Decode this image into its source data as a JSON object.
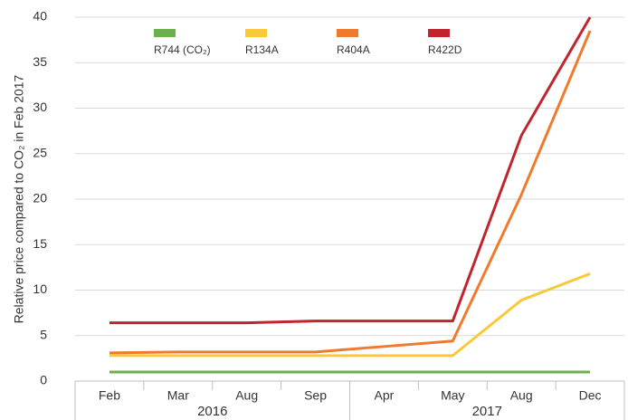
{
  "chart_data": {
    "type": "line",
    "ylabel": "Relative price compared to CO₂ in Feb 2017",
    "categories": [
      "Feb",
      "Mar",
      "Aug",
      "Sep",
      "Apr",
      "May",
      "Aug",
      "Dec"
    ],
    "category_groups": [
      "2016",
      "2016",
      "2016",
      "2016",
      "2017",
      "2017",
      "2017",
      "2017"
    ],
    "series": [
      {
        "name": "R744 (CO₂)",
        "color": "#6ab04c",
        "values": [
          1,
          1,
          1,
          1,
          1,
          1,
          1,
          1
        ]
      },
      {
        "name": "R134A",
        "color": "#f9c93a",
        "values": [
          2.8,
          2.8,
          2.8,
          2.8,
          2.8,
          2.8,
          8.9,
          11.8
        ]
      },
      {
        "name": "R404A",
        "color": "#ef7a2c",
        "values": [
          3.1,
          3.2,
          3.2,
          3.2,
          3.8,
          4.4,
          20.5,
          38.5
        ]
      },
      {
        "name": "R422D",
        "color": "#c0242d",
        "values": [
          6.4,
          6.4,
          6.4,
          6.6,
          6.6,
          6.6,
          27,
          40
        ]
      }
    ],
    "ylim": [
      0,
      40
    ],
    "yticks": [
      0,
      5,
      10,
      15,
      20,
      25,
      30,
      35,
      40
    ],
    "grid": true,
    "legend": "top"
  }
}
